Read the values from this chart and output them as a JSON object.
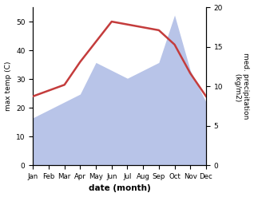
{
  "months": [
    "Jan",
    "Feb",
    "Mar",
    "Apr",
    "May",
    "Jun",
    "Jul",
    "Aug",
    "Sep",
    "Oct",
    "Nov",
    "Dec"
  ],
  "max_temp": [
    24,
    26,
    28,
    36,
    43,
    50,
    49,
    48,
    47,
    42,
    32,
    24
  ],
  "precipitation": [
    6,
    7,
    8,
    9,
    13,
    12,
    11,
    12,
    13,
    19,
    12,
    8
  ],
  "temp_color": "#c43c3c",
  "precip_fill_color": "#b8c4e8",
  "xlabel": "date (month)",
  "ylabel_left": "max temp (C)",
  "ylabel_right": "med. precipitation\n (kg/m2)",
  "ylim_left": [
    0,
    55
  ],
  "ylim_right": [
    0,
    20
  ],
  "yticks_left": [
    0,
    10,
    20,
    30,
    40,
    50
  ],
  "yticks_right": [
    0,
    5,
    10,
    15,
    20
  ],
  "bg_color": "#ffffff",
  "fig_width": 3.18,
  "fig_height": 2.47,
  "dpi": 100
}
